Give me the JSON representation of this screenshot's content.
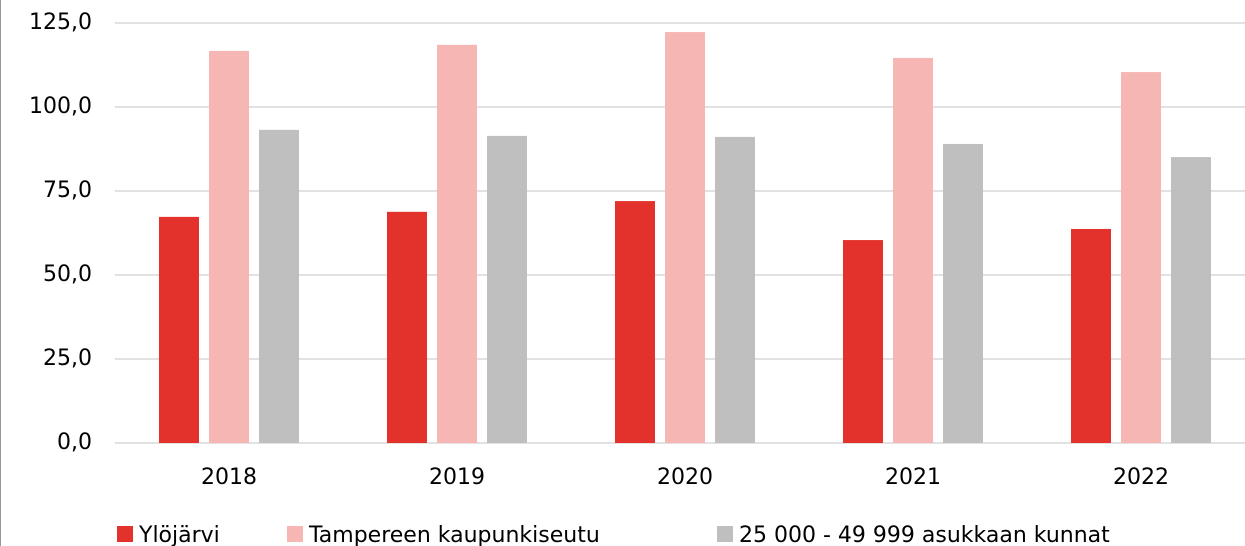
{
  "chart_data": {
    "type": "bar",
    "categories": [
      "2018",
      "2019",
      "2020",
      "2021",
      "2022"
    ],
    "series": [
      {
        "name": "Ylöjärvi",
        "color": "#e3322b",
        "values": [
          67.3,
          68.8,
          72.0,
          60.4,
          63.7
        ]
      },
      {
        "name": "Tampereen kaupunkiseutu",
        "color": "#f6b6b3",
        "values": [
          116.7,
          118.5,
          122.3,
          114.6,
          110.4
        ]
      },
      {
        "name": "25 000 - 49 999 asukkaan kunnat",
        "color": "#bfbfbf",
        "values": [
          93.2,
          91.4,
          91.1,
          89.0,
          85.1
        ]
      }
    ],
    "ylim": [
      0,
      125
    ],
    "yticks": [
      {
        "value": 0,
        "label": "0,0"
      },
      {
        "value": 25,
        "label": "25,0"
      },
      {
        "value": 50,
        "label": "50,0"
      },
      {
        "value": 75,
        "label": "75,0"
      },
      {
        "value": 100,
        "label": "100,0"
      },
      {
        "value": 125,
        "label": "125,0"
      }
    ],
    "grid": true,
    "legend": "bottom"
  }
}
